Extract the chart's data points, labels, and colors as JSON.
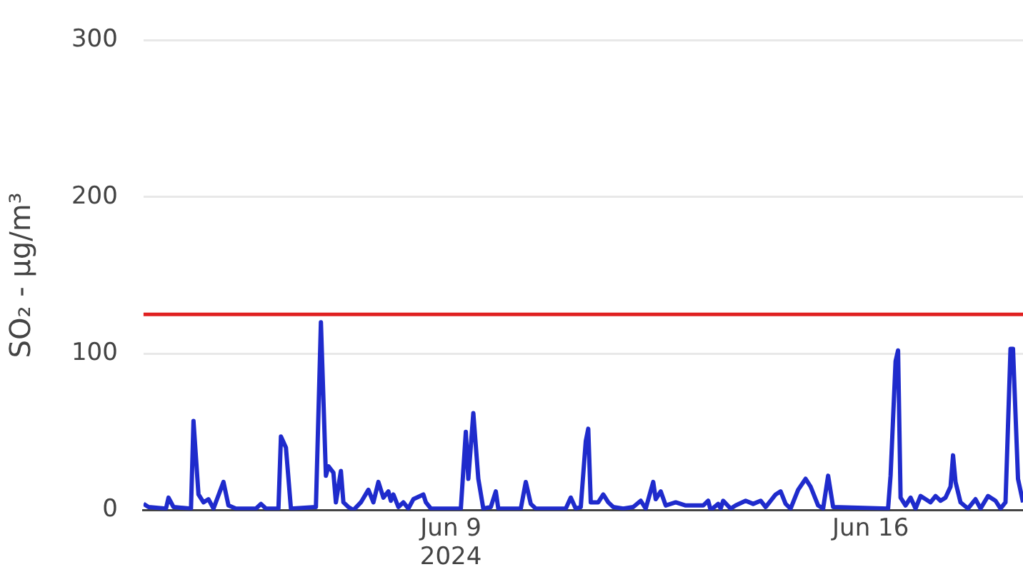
{
  "chart_data": {
    "type": "line",
    "ylabel": "SO₂ - μg/m³",
    "x": [
      "2024-06-03T21:00",
      "2024-06-03T23:00",
      "2024-06-04T06:00",
      "2024-06-04T07:00",
      "2024-06-04T09:00",
      "2024-06-04T16:00",
      "2024-06-04T17:00",
      "2024-06-04T19:00",
      "2024-06-04T21:00",
      "2024-06-04T23:00",
      "2024-06-05T01:00",
      "2024-06-05T05:00",
      "2024-06-05T07:00",
      "2024-06-05T10:00",
      "2024-06-05T18:00",
      "2024-06-05T20:00",
      "2024-06-05T22:00",
      "2024-06-06T03:00",
      "2024-06-06T04:00",
      "2024-06-06T06:00",
      "2024-06-06T08:00",
      "2024-06-06T18:00",
      "2024-06-06T20:00",
      "2024-06-06T22:00",
      "2024-06-06T23:00",
      "2024-06-07T01:00",
      "2024-06-07T02:00",
      "2024-06-07T04:00",
      "2024-06-07T05:00",
      "2024-06-07T07:00",
      "2024-06-07T09:00",
      "2024-06-07T12:00",
      "2024-06-07T15:00",
      "2024-06-07T17:00",
      "2024-06-07T19:00",
      "2024-06-07T21:00",
      "2024-06-07T23:00",
      "2024-06-08T00:00",
      "2024-06-08T01:00",
      "2024-06-08T03:00",
      "2024-06-08T05:00",
      "2024-06-08T07:00",
      "2024-06-08T09:00",
      "2024-06-08T13:00",
      "2024-06-08T14:00",
      "2024-06-08T16:00",
      "2024-06-09T04:00",
      "2024-06-09T06:00",
      "2024-06-09T07:00",
      "2024-06-09T09:00",
      "2024-06-09T11:00",
      "2024-06-09T13:00",
      "2024-06-09T16:00",
      "2024-06-09T18:00",
      "2024-06-09T19:00",
      "2024-06-10T04:00",
      "2024-06-10T06:00",
      "2024-06-10T08:00",
      "2024-06-10T10:00",
      "2024-06-10T22:00",
      "2024-06-11T00:00",
      "2024-06-11T02:00",
      "2024-06-11T04:00",
      "2024-06-11T06:00",
      "2024-06-11T07:00",
      "2024-06-11T08:00",
      "2024-06-11T11:00",
      "2024-06-11T13:00",
      "2024-06-11T15:00",
      "2024-06-11T17:00",
      "2024-06-11T21:00",
      "2024-06-12T01:00",
      "2024-06-12T04:00",
      "2024-06-12T06:00",
      "2024-06-12T09:00",
      "2024-06-12T10:00",
      "2024-06-12T12:00",
      "2024-06-12T14:00",
      "2024-06-12T18:00",
      "2024-06-12T22:00",
      "2024-06-13T05:00",
      "2024-06-13T07:00",
      "2024-06-13T08:00",
      "2024-06-13T11:00",
      "2024-06-13T12:00",
      "2024-06-13T13:00",
      "2024-06-13T16:00",
      "2024-06-13T18:00",
      "2024-06-13T22:00",
      "2024-06-14T01:00",
      "2024-06-14T04:00",
      "2024-06-14T06:00",
      "2024-06-14T10:00",
      "2024-06-14T12:00",
      "2024-06-14T14:00",
      "2024-06-14T16:00",
      "2024-06-14T19:00",
      "2024-06-14T22:00",
      "2024-06-15T00:00",
      "2024-06-15T03:00",
      "2024-06-15T05:00",
      "2024-06-15T07:00",
      "2024-06-15T09:00",
      "2024-06-16T07:00",
      "2024-06-16T08:00",
      "2024-06-16T10:00",
      "2024-06-16T11:00",
      "2024-06-16T12:00",
      "2024-06-16T14:00",
      "2024-06-16T16:00",
      "2024-06-16T18:00",
      "2024-06-16T20:00",
      "2024-06-16T22:00",
      "2024-06-17T00:00",
      "2024-06-17T02:00",
      "2024-06-17T04:00",
      "2024-06-17T06:00",
      "2024-06-17T08:00",
      "2024-06-17T09:00",
      "2024-06-17T10:00",
      "2024-06-17T12:00",
      "2024-06-17T15:00",
      "2024-06-17T17:00",
      "2024-06-17T18:00",
      "2024-06-17T20:00",
      "2024-06-17T23:00",
      "2024-06-18T02:00",
      "2024-06-18T04:00",
      "2024-06-18T06:00",
      "2024-06-18T08:00",
      "2024-06-18T09:00",
      "2024-06-18T11:00",
      "2024-06-18T13:00"
    ],
    "series": [
      {
        "color": "#1f2bcc",
        "values": [
          4,
          2,
          1,
          8,
          2,
          1,
          57,
          10,
          5,
          7,
          1,
          18,
          3,
          1,
          1,
          4,
          1,
          1,
          47,
          40,
          1,
          2,
          120,
          22,
          28,
          24,
          5,
          25,
          5,
          2,
          0,
          5,
          13,
          5,
          18,
          8,
          12,
          6,
          10,
          2,
          5,
          1,
          7,
          10,
          5,
          1,
          1,
          50,
          20,
          62,
          20,
          1,
          2,
          12,
          1,
          1,
          18,
          4,
          1,
          1,
          8,
          1,
          2,
          44,
          52,
          5,
          5,
          10,
          5,
          2,
          1,
          2,
          6,
          1,
          18,
          7,
          12,
          3,
          5,
          3,
          3,
          6,
          0,
          4,
          1,
          6,
          1,
          3,
          6,
          4,
          6,
          2,
          10,
          12,
          4,
          1,
          13,
          20,
          15,
          3,
          1,
          22,
          2,
          1,
          22,
          95,
          102,
          8,
          3,
          8,
          1,
          9,
          7,
          5,
          9,
          6,
          8,
          15,
          35,
          18,
          5,
          1,
          5,
          7,
          1,
          9,
          6,
          1,
          5,
          103,
          103,
          20,
          5
        ]
      }
    ],
    "xlim": [
      "2024-06-03T21:00",
      "2024-06-18T13:00"
    ],
    "xticks": [
      {
        "value": "2024-06-09",
        "label": "Jun 9\n2024"
      },
      {
        "value": "2024-06-16",
        "label": "Jun 16"
      }
    ],
    "ylim": [
      0,
      300
    ],
    "yticks": [
      0,
      100,
      200,
      300
    ],
    "ref_lines": [
      {
        "axis": "y",
        "value": 125,
        "color": "#e02020"
      }
    ],
    "grid": "y",
    "legend": false,
    "marker": "none",
    "line_style": "solid"
  }
}
